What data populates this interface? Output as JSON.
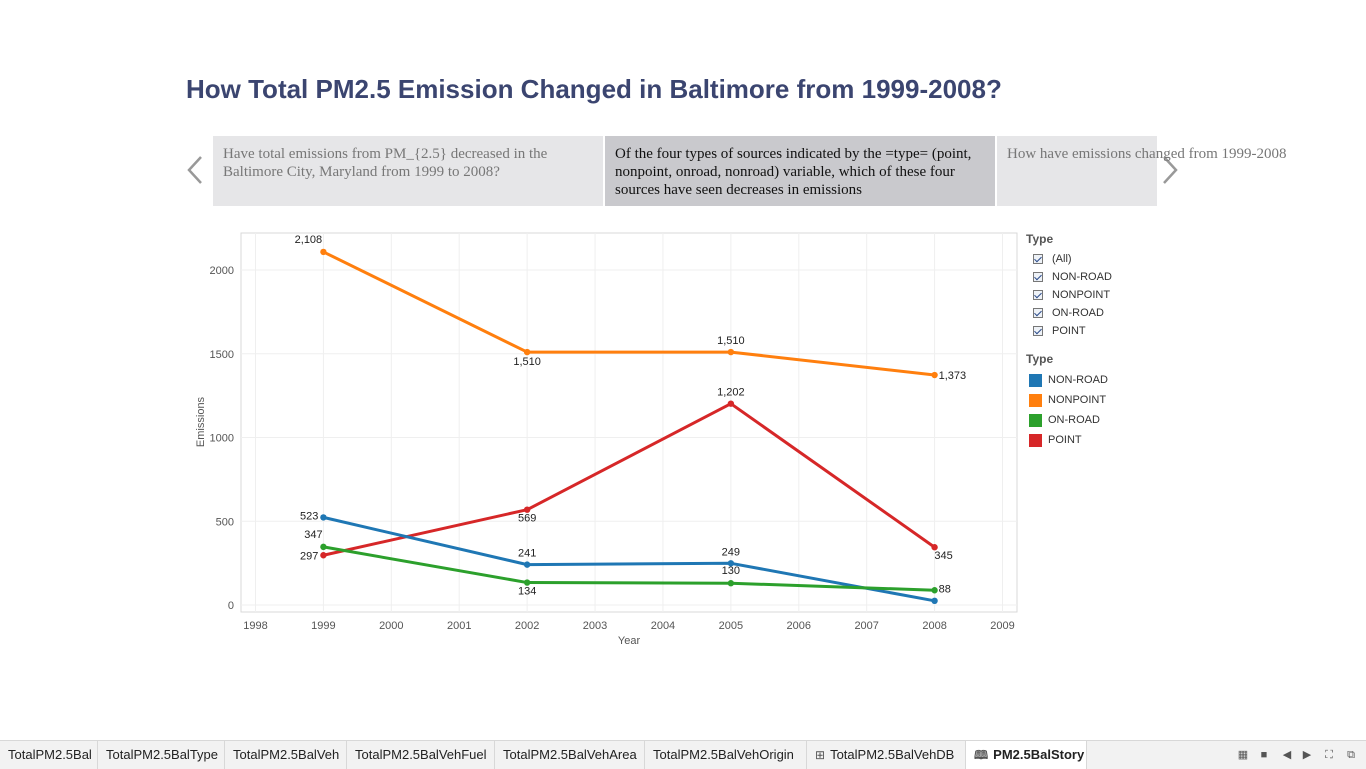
{
  "story": {
    "title": "How Total PM2.5 Emission Changed in Baltimore from 1999-2008?",
    "points": [
      {
        "text": "Have total emissions from PM_{2.5} decreased in the Baltimore City, Maryland from 1999 to 2008?"
      },
      {
        "text": "Of the four types of sources indicated by the =type= (point, nonpoint, onroad, nonroad) variable, which of these four sources have seen decreases in emissions"
      },
      {
        "text": "How have emissions changed from 1999-2008"
      }
    ]
  },
  "filter": {
    "title": "Type",
    "items": [
      "(All)",
      "NON-ROAD",
      "NONPOINT",
      "ON-ROAD",
      "POINT"
    ]
  },
  "color_legend": {
    "title": "Type",
    "items": [
      {
        "label": "NON-ROAD",
        "color": "#1f77b4"
      },
      {
        "label": "NONPOINT",
        "color": "#ff7f0e"
      },
      {
        "label": "ON-ROAD",
        "color": "#2ca02c"
      },
      {
        "label": "POINT",
        "color": "#d62728"
      }
    ]
  },
  "chart_data": {
    "type": "line",
    "xlabel": "Year",
    "ylabel": "Emissions",
    "x_ticks": [
      "1998",
      "1999",
      "2000",
      "2001",
      "2002",
      "2003",
      "2004",
      "2005",
      "2006",
      "2007",
      "2008",
      "2009"
    ],
    "y_ticks": [
      "0",
      "500",
      "1000",
      "1500",
      "2000"
    ],
    "xlim": [
      1998,
      2009
    ],
    "ylim": [
      0,
      2200
    ],
    "x": [
      1999,
      2002,
      2005,
      2008
    ],
    "series": [
      {
        "name": "NONPOINT",
        "color": "#ff7f0e",
        "values": [
          2108,
          1510,
          1510,
          1373
        ],
        "labels": [
          "2,108",
          "1,510",
          "1,510",
          "1,373"
        ]
      },
      {
        "name": "POINT",
        "color": "#d62728",
        "values": [
          297,
          569,
          1202,
          345
        ],
        "labels": [
          "297",
          "569",
          "1,202",
          "345"
        ]
      },
      {
        "name": "NON-ROAD",
        "color": "#1f77b4",
        "values": [
          523,
          241,
          249,
          25
        ],
        "labels": [
          "523",
          "241",
          "249",
          ""
        ]
      },
      {
        "name": "ON-ROAD",
        "color": "#2ca02c",
        "values": [
          347,
          134,
          130,
          88
        ],
        "labels": [
          "347",
          "134",
          "130",
          "88"
        ]
      }
    ]
  },
  "tabs": [
    {
      "label": "TotalPM2.5Bal",
      "icon": ""
    },
    {
      "label": "TotalPM2.5BalType",
      "icon": ""
    },
    {
      "label": "TotalPM2.5BalVeh",
      "icon": ""
    },
    {
      "label": "TotalPM2.5BalVehFuel",
      "icon": ""
    },
    {
      "label": "TotalPM2.5BalVehArea",
      "icon": ""
    },
    {
      "label": "TotalPM2.5BalVehOrigin",
      "icon": ""
    },
    {
      "label": "TotalPM2.5BalVehDB",
      "icon": "dashboard-icon"
    },
    {
      "label": "PM2.5BalStory",
      "icon": "story-icon",
      "active": true
    }
  ]
}
